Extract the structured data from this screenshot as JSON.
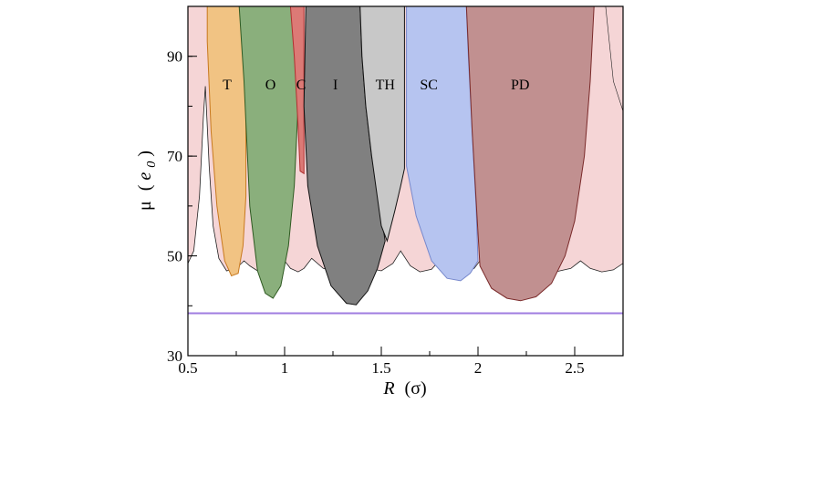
{
  "chart_data": {
    "type": "area",
    "xlabel": {
      "main": "R",
      "unit": "(σ)"
    },
    "ylabel": {
      "main": "μ",
      "unit_open": "(",
      "unit_var": "e",
      "unit_sub": "0",
      "unit_close": ")"
    },
    "xlim": [
      0.5,
      2.75
    ],
    "ylim": [
      30,
      100
    ],
    "x_ticks": [
      {
        "value": 0.5,
        "label": "0.5"
      },
      {
        "value": 1,
        "label": "1"
      },
      {
        "value": 1.5,
        "label": "1.5"
      },
      {
        "value": 2,
        "label": "2"
      },
      {
        "value": 2.5,
        "label": "2.5"
      }
    ],
    "y_ticks": [
      {
        "value": 30,
        "label": "30"
      },
      {
        "value": 50,
        "label": "50"
      },
      {
        "value": 70,
        "label": "70"
      },
      {
        "value": 90,
        "label": "90"
      }
    ],
    "x_minor_step": 0.25,
    "y_minor_step": 10,
    "reference_line": {
      "y": 38.5,
      "color": "#a07ee0"
    },
    "background_region": {
      "color": "#f5d5d6",
      "stroke": "#222222",
      "boundary": [
        [
          0.5,
          48.5
        ],
        [
          0.53,
          51
        ],
        [
          0.56,
          62
        ],
        [
          0.58,
          78
        ],
        [
          0.59,
          84
        ],
        [
          0.61,
          68
        ],
        [
          0.63,
          56
        ],
        [
          0.66,
          49.5
        ],
        [
          0.7,
          47
        ],
        [
          0.75,
          47.5
        ],
        [
          0.79,
          49
        ],
        [
          0.82,
          48
        ],
        [
          0.86,
          47
        ],
        [
          0.9,
          46.8
        ],
        [
          0.96,
          47.5
        ],
        [
          1.0,
          49
        ],
        [
          1.03,
          47.5
        ],
        [
          1.07,
          46.8
        ],
        [
          1.1,
          47.5
        ],
        [
          1.14,
          49.5
        ],
        [
          1.2,
          47.5
        ],
        [
          1.27,
          46.8
        ],
        [
          1.33,
          47.5
        ],
        [
          1.38,
          49.5
        ],
        [
          1.44,
          47.5
        ],
        [
          1.5,
          47
        ],
        [
          1.56,
          48.5
        ],
        [
          1.6,
          51
        ],
        [
          1.65,
          48
        ],
        [
          1.7,
          46.8
        ],
        [
          1.76,
          47.3
        ],
        [
          1.81,
          49.5
        ],
        [
          1.87,
          47.5
        ],
        [
          1.93,
          46.8
        ],
        [
          1.98,
          47.5
        ],
        [
          2.02,
          49.5
        ],
        [
          2.08,
          47.5
        ],
        [
          2.14,
          46.8
        ],
        [
          2.2,
          47.5
        ],
        [
          2.25,
          49.5
        ],
        [
          2.32,
          47.5
        ],
        [
          2.4,
          46.8
        ],
        [
          2.48,
          47.5
        ],
        [
          2.53,
          49
        ],
        [
          2.58,
          47.5
        ],
        [
          2.64,
          46.8
        ],
        [
          2.7,
          47.2
        ],
        [
          2.75,
          48.5
        ]
      ],
      "left_edge_bulge": [
        [
          0.5,
          100
        ],
        [
          0.5,
          48.5
        ]
      ],
      "right_edge_bulge": [
        [
          2.66,
          100
        ],
        [
          2.7,
          85
        ],
        [
          2.75,
          79
        ]
      ]
    },
    "regions": [
      {
        "label": "T",
        "color": "#f1c383",
        "stroke": "#c8791f",
        "label_at": [
          0.68,
          84.5
        ],
        "boundary": [
          [
            0.6,
            100
          ],
          [
            0.6,
            93
          ],
          [
            0.62,
            75
          ],
          [
            0.65,
            60
          ],
          [
            0.69,
            49
          ],
          [
            0.725,
            46
          ],
          [
            0.76,
            46.5
          ],
          [
            0.785,
            52
          ],
          [
            0.8,
            62
          ],
          [
            0.8,
            100
          ]
        ]
      },
      {
        "label": "O",
        "color": "#8aaf7c",
        "stroke": "#2f5a22",
        "label_at": [
          0.9,
          84.5
        ],
        "boundary": [
          [
            0.765,
            100
          ],
          [
            0.79,
            85
          ],
          [
            0.82,
            60
          ],
          [
            0.86,
            47
          ],
          [
            0.9,
            42.5
          ],
          [
            0.94,
            41.5
          ],
          [
            0.98,
            44
          ],
          [
            1.02,
            52
          ],
          [
            1.05,
            64
          ],
          [
            1.07,
            80
          ],
          [
            1.08,
            100
          ]
        ]
      },
      {
        "label": "C",
        "color": "#dc7a76",
        "stroke": "#b03030",
        "label_at": [
          1.06,
          84.5
        ],
        "boundary": [
          [
            1.03,
            100
          ],
          [
            1.05,
            90
          ],
          [
            1.07,
            76
          ],
          [
            1.08,
            67
          ],
          [
            1.1,
            66.5
          ],
          [
            1.1,
            100
          ]
        ]
      },
      {
        "label": "I",
        "color": "#808080",
        "stroke": "#111111",
        "label_at": [
          1.25,
          84.5
        ],
        "boundary": [
          [
            1.11,
            100
          ],
          [
            1.1,
            80
          ],
          [
            1.12,
            64
          ],
          [
            1.17,
            52
          ],
          [
            1.24,
            44
          ],
          [
            1.32,
            40.5
          ],
          [
            1.37,
            40.2
          ],
          [
            1.43,
            43
          ],
          [
            1.48,
            47.5
          ],
          [
            1.52,
            53
          ],
          [
            1.5,
            58
          ],
          [
            1.45,
            70
          ],
          [
            1.42,
            80
          ],
          [
            1.4,
            90
          ],
          [
            1.39,
            100
          ]
        ]
      },
      {
        "label": "TH",
        "color": "#c8c8c8",
        "stroke": "#111111",
        "label_at": [
          1.47,
          84.5
        ],
        "boundary": [
          [
            1.39,
            100
          ],
          [
            1.4,
            90
          ],
          [
            1.42,
            80
          ],
          [
            1.45,
            70
          ],
          [
            1.5,
            56
          ],
          [
            1.53,
            53
          ],
          [
            1.57,
            59
          ],
          [
            1.6,
            64
          ],
          [
            1.62,
            67.5
          ],
          [
            1.62,
            100
          ]
        ]
      },
      {
        "label": "SC",
        "color": "#b6c4f0",
        "stroke": "#7788cc",
        "label_at": [
          1.7,
          84.5
        ],
        "boundary": [
          [
            1.63,
            100
          ],
          [
            1.63,
            68
          ],
          [
            1.68,
            58
          ],
          [
            1.76,
            49
          ],
          [
            1.84,
            45.5
          ],
          [
            1.91,
            45
          ],
          [
            1.96,
            46.5
          ],
          [
            2.0,
            49
          ],
          [
            1.99,
            60
          ],
          [
            1.97,
            75
          ],
          [
            1.95,
            90
          ],
          [
            1.94,
            100
          ]
        ]
      },
      {
        "label": "PD",
        "color": "#c19090",
        "stroke": "#7a2a2a",
        "label_at": [
          2.17,
          84.5
        ],
        "boundary": [
          [
            1.94,
            100
          ],
          [
            1.97,
            75
          ],
          [
            1.995,
            58
          ],
          [
            2.01,
            48
          ],
          [
            2.07,
            43.5
          ],
          [
            2.15,
            41.5
          ],
          [
            2.22,
            41
          ],
          [
            2.3,
            41.8
          ],
          [
            2.38,
            44.5
          ],
          [
            2.45,
            50
          ],
          [
            2.5,
            57
          ],
          [
            2.55,
            70
          ],
          [
            2.58,
            85
          ],
          [
            2.6,
            100
          ]
        ]
      }
    ]
  }
}
